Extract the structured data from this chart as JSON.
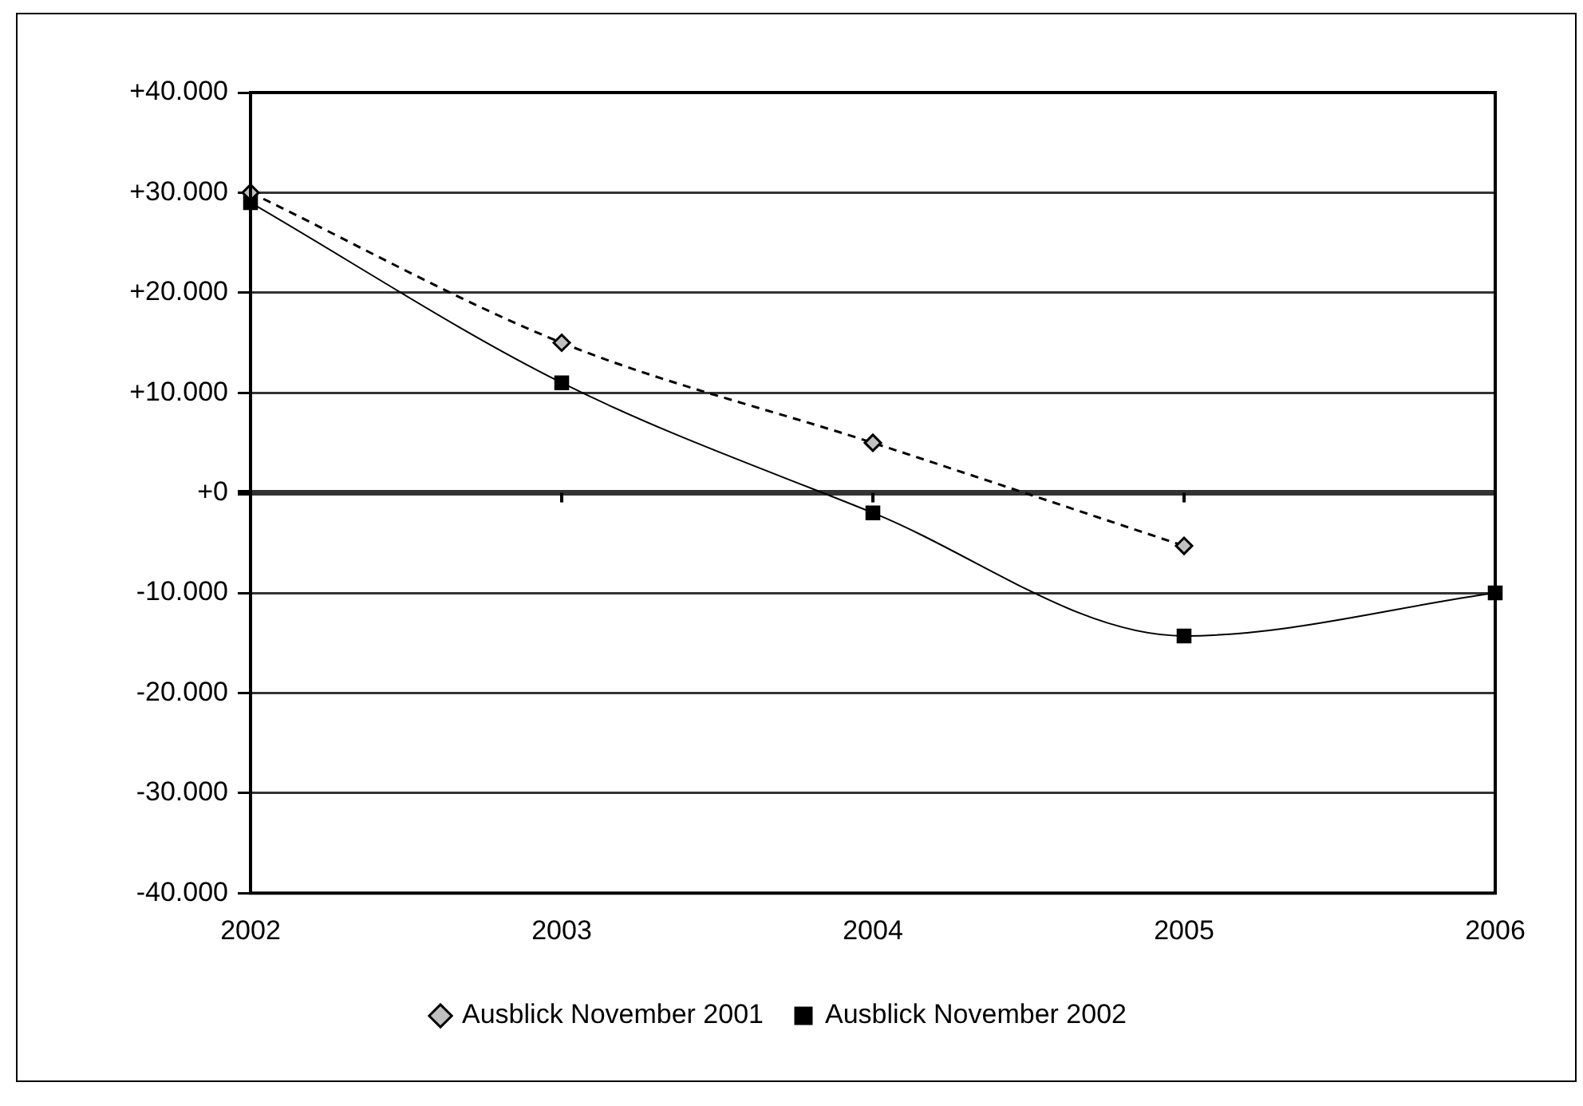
{
  "chart_data": {
    "type": "line",
    "categories": [
      "2002",
      "2003",
      "2004",
      "2005",
      "2006"
    ],
    "series": [
      {
        "name": "Ausblick November 2001",
        "color": "#000000",
        "marker": "diamond",
        "line_style": "dashed",
        "values": [
          30000,
          15000,
          5000,
          -5300,
          null
        ]
      },
      {
        "name": "Ausblick November 2002",
        "color": "#000000",
        "marker": "square",
        "line_style": "solid",
        "values": [
          29000,
          11000,
          -2000,
          -14300,
          -10000
        ]
      }
    ],
    "ylim": [
      -40000,
      40000
    ],
    "yticks": [
      {
        "value": 40000,
        "label": "+40.000"
      },
      {
        "value": 30000,
        "label": "+30.000"
      },
      {
        "value": 20000,
        "label": "+20.000"
      },
      {
        "value": 10000,
        "label": "+10.000"
      },
      {
        "value": 0,
        "label": "+0"
      },
      {
        "value": -10000,
        "label": "-10.000"
      },
      {
        "value": -20000,
        "label": "-20.000"
      },
      {
        "value": -30000,
        "label": "-30.000"
      },
      {
        "value": -40000,
        "label": "-40.000"
      }
    ],
    "grid": "y",
    "legend": "bottom"
  }
}
